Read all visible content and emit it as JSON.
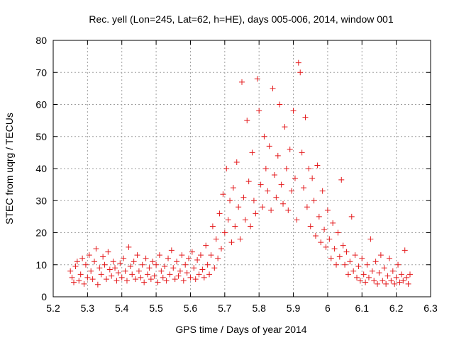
{
  "chart_data": {
    "type": "scatter",
    "title": "Rec. yell (Lon=245, Lat=62, h=HE), days 005-006, 2014, window 001",
    "xlabel": "GPS time / Days of year 2014",
    "ylabel": "STEC from uqrg / TECUs",
    "xlim": [
      5.2,
      6.3
    ],
    "ylim": [
      0,
      80
    ],
    "xticks": [
      5.2,
      5.3,
      5.4,
      5.5,
      5.6,
      5.7,
      5.8,
      5.9,
      6.0,
      6.1,
      6.2,
      6.3
    ],
    "xtick_labels": [
      "5.2",
      "5.3",
      "5.4",
      "5.5",
      "5.6",
      "5.7",
      "5.8",
      "5.9",
      "6",
      "6.1",
      "6.2",
      "6.3"
    ],
    "yticks": [
      0,
      10,
      20,
      30,
      40,
      50,
      60,
      70,
      80
    ],
    "ytick_labels": [
      "0",
      "10",
      "20",
      "30",
      "40",
      "50",
      "60",
      "70",
      "80"
    ],
    "grid": true,
    "marker": "+",
    "color": "#e41a1c",
    "series": [
      {
        "name": "STEC",
        "points": [
          [
            5.25,
            8
          ],
          [
            5.255,
            6
          ],
          [
            5.26,
            4.5
          ],
          [
            5.265,
            9.5
          ],
          [
            5.27,
            11
          ],
          [
            5.275,
            5
          ],
          [
            5.28,
            7
          ],
          [
            5.285,
            12
          ],
          [
            5.29,
            4
          ],
          [
            5.295,
            10
          ],
          [
            5.3,
            6
          ],
          [
            5.305,
            13
          ],
          [
            5.31,
            8
          ],
          [
            5.315,
            5.5
          ],
          [
            5.32,
            11
          ],
          [
            5.325,
            15
          ],
          [
            5.33,
            3.8
          ],
          [
            5.335,
            9
          ],
          [
            5.34,
            7
          ],
          [
            5.345,
            12.5
          ],
          [
            5.35,
            10
          ],
          [
            5.355,
            5.5
          ],
          [
            5.36,
            14
          ],
          [
            5.365,
            8.5
          ],
          [
            5.37,
            6.5
          ],
          [
            5.375,
            11
          ],
          [
            5.38,
            9
          ],
          [
            5.385,
            5
          ],
          [
            5.39,
            7.5
          ],
          [
            5.395,
            10.5
          ],
          [
            5.4,
            6
          ],
          [
            5.405,
            12
          ],
          [
            5.41,
            8
          ],
          [
            5.415,
            5
          ],
          [
            5.42,
            15.5
          ],
          [
            5.425,
            9.5
          ],
          [
            5.43,
            7
          ],
          [
            5.435,
            11
          ],
          [
            5.44,
            5.5
          ],
          [
            5.445,
            13
          ],
          [
            5.45,
            8
          ],
          [
            5.455,
            6
          ],
          [
            5.46,
            10
          ],
          [
            5.465,
            4.5
          ],
          [
            5.47,
            12
          ],
          [
            5.475,
            7
          ],
          [
            5.48,
            9
          ],
          [
            5.485,
            5.5
          ],
          [
            5.49,
            11
          ],
          [
            5.495,
            6.5
          ],
          [
            5.5,
            10
          ],
          [
            5.505,
            4.5
          ],
          [
            5.51,
            13
          ],
          [
            5.515,
            8
          ],
          [
            5.52,
            6
          ],
          [
            5.525,
            9.5
          ],
          [
            5.53,
            5
          ],
          [
            5.535,
            12
          ],
          [
            5.54,
            7
          ],
          [
            5.545,
            14.5
          ],
          [
            5.55,
            9
          ],
          [
            5.555,
            5.5
          ],
          [
            5.56,
            11
          ],
          [
            5.565,
            6.5
          ],
          [
            5.57,
            8
          ],
          [
            5.575,
            13
          ],
          [
            5.58,
            5
          ],
          [
            5.585,
            10
          ],
          [
            5.59,
            7.5
          ],
          [
            5.595,
            12
          ],
          [
            5.6,
            6
          ],
          [
            5.605,
            14
          ],
          [
            5.61,
            9
          ],
          [
            5.615,
            5.5
          ],
          [
            5.62,
            11.5
          ],
          [
            5.625,
            7
          ],
          [
            5.63,
            13
          ],
          [
            5.635,
            8.5
          ],
          [
            5.64,
            6
          ],
          [
            5.645,
            16
          ],
          [
            5.65,
            10
          ],
          [
            5.655,
            7
          ],
          [
            5.66,
            13
          ],
          [
            5.665,
            22
          ],
          [
            5.67,
            9
          ],
          [
            5.675,
            18
          ],
          [
            5.68,
            12
          ],
          [
            5.685,
            26
          ],
          [
            5.69,
            15
          ],
          [
            5.695,
            32
          ],
          [
            5.7,
            20
          ],
          [
            5.705,
            40
          ],
          [
            5.71,
            24
          ],
          [
            5.715,
            30
          ],
          [
            5.72,
            17
          ],
          [
            5.725,
            34
          ],
          [
            5.73,
            22
          ],
          [
            5.735,
            42
          ],
          [
            5.74,
            28
          ],
          [
            5.745,
            18
          ],
          [
            5.75,
            67
          ],
          [
            5.755,
            31
          ],
          [
            5.76,
            24
          ],
          [
            5.765,
            55
          ],
          [
            5.77,
            36
          ],
          [
            5.775,
            22
          ],
          [
            5.78,
            45
          ],
          [
            5.785,
            30
          ],
          [
            5.79,
            26
          ],
          [
            5.795,
            68
          ],
          [
            5.8,
            58
          ],
          [
            5.805,
            35
          ],
          [
            5.81,
            28
          ],
          [
            5.815,
            50
          ],
          [
            5.82,
            40
          ],
          [
            5.825,
            33
          ],
          [
            5.83,
            47
          ],
          [
            5.835,
            27
          ],
          [
            5.84,
            65
          ],
          [
            5.845,
            38
          ],
          [
            5.85,
            31
          ],
          [
            5.855,
            44
          ],
          [
            5.86,
            60
          ],
          [
            5.865,
            35
          ],
          [
            5.87,
            29
          ],
          [
            5.875,
            53
          ],
          [
            5.88,
            40
          ],
          [
            5.885,
            27
          ],
          [
            5.89,
            46
          ],
          [
            5.895,
            33
          ],
          [
            5.9,
            58
          ],
          [
            5.905,
            37
          ],
          [
            5.91,
            24
          ],
          [
            5.915,
            73
          ],
          [
            5.92,
            70
          ],
          [
            5.925,
            45
          ],
          [
            5.93,
            34
          ],
          [
            5.935,
            56
          ],
          [
            5.94,
            28
          ],
          [
            5.945,
            40
          ],
          [
            5.95,
            22
          ],
          [
            5.955,
            37
          ],
          [
            5.96,
            30
          ],
          [
            5.965,
            19
          ],
          [
            5.97,
            41
          ],
          [
            5.975,
            25
          ],
          [
            5.98,
            17
          ],
          [
            5.985,
            33
          ],
          [
            5.99,
            21
          ],
          [
            5.995,
            15.5
          ],
          [
            6.0,
            27
          ],
          [
            6.005,
            18
          ],
          [
            6.01,
            12
          ],
          [
            6.015,
            23
          ],
          [
            6.02,
            15
          ],
          [
            6.025,
            10
          ],
          [
            6.03,
            20
          ],
          [
            6.035,
            12.5
          ],
          [
            6.04,
            36.5
          ],
          [
            6.045,
            16
          ],
          [
            6.05,
            10
          ],
          [
            6.055,
            14
          ],
          [
            6.06,
            7
          ],
          [
            6.065,
            11
          ],
          [
            6.07,
            25
          ],
          [
            6.075,
            8
          ],
          [
            6.08,
            13
          ],
          [
            6.085,
            6
          ],
          [
            6.09,
            9.5
          ],
          [
            6.095,
            5
          ],
          [
            6.1,
            12
          ],
          [
            6.105,
            7
          ],
          [
            6.11,
            4.5
          ],
          [
            6.115,
            10
          ],
          [
            6.12,
            6
          ],
          [
            6.125,
            18
          ],
          [
            6.13,
            8
          ],
          [
            6.135,
            5
          ],
          [
            6.14,
            11
          ],
          [
            6.145,
            4
          ],
          [
            6.15,
            7.5
          ],
          [
            6.155,
            13
          ],
          [
            6.16,
            5
          ],
          [
            6.165,
            9
          ],
          [
            6.17,
            4
          ],
          [
            6.175,
            6.5
          ],
          [
            6.18,
            12
          ],
          [
            6.185,
            5
          ],
          [
            6.19,
            8
          ],
          [
            6.195,
            4
          ],
          [
            6.2,
            6
          ],
          [
            6.205,
            10
          ],
          [
            6.21,
            4.5
          ],
          [
            6.215,
            7
          ],
          [
            6.22,
            5
          ],
          [
            6.225,
            14.5
          ],
          [
            6.23,
            6
          ],
          [
            6.235,
            4
          ],
          [
            6.24,
            7
          ]
        ]
      }
    ]
  }
}
